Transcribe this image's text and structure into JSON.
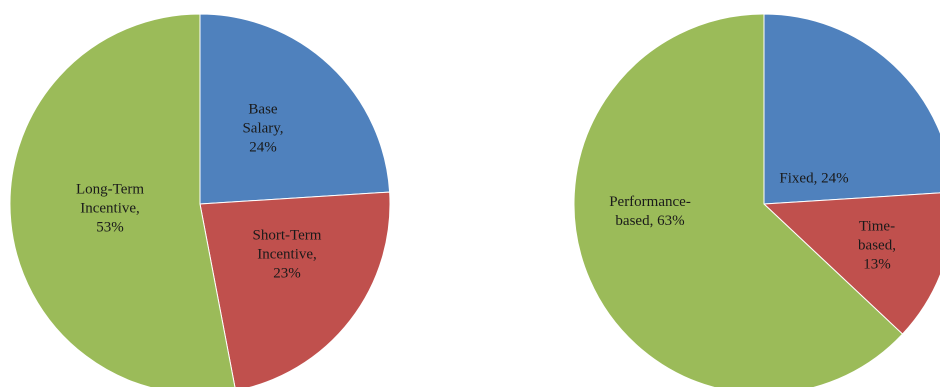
{
  "chart_data": [
    {
      "type": "pie",
      "labels": [
        "Base Salary",
        "Short-Term Incentive",
        "Long-Term Incentive"
      ],
      "values": [
        24,
        23,
        53
      ],
      "display_labels": [
        [
          "Base",
          "Salary,",
          "24%"
        ],
        [
          "Short-Term",
          "Incentive,",
          "23%"
        ],
        [
          "Long-Term",
          "Incentive,",
          "53%"
        ]
      ],
      "colors": [
        "#4f81bd",
        "#c0504d",
        "#9bbb59"
      ],
      "start_angle_deg": 0,
      "direction": "clockwise"
    },
    {
      "type": "pie",
      "labels": [
        "Fixed",
        "Time-based",
        "Performance-based"
      ],
      "values": [
        24,
        13,
        63
      ],
      "display_labels": [
        [
          "Fixed, 24%"
        ],
        [
          "Time-",
          "based,",
          "13%"
        ],
        [
          "Performance-",
          "based, 63%"
        ]
      ],
      "colors": [
        "#4f81bd",
        "#c0504d",
        "#9bbb59"
      ],
      "start_angle_deg": 0,
      "direction": "clockwise"
    }
  ]
}
